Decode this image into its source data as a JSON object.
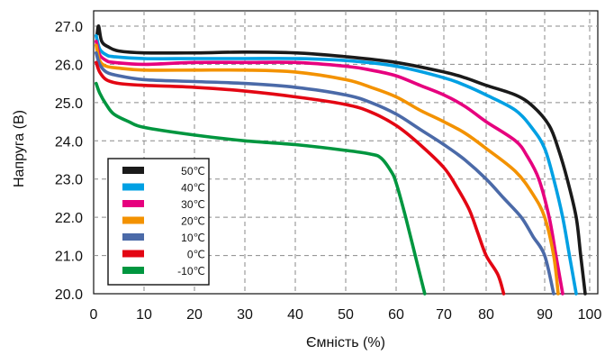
{
  "chart_data": {
    "type": "line",
    "title": "",
    "xlabel": "Ємність (%)",
    "ylabel": "Напруга (В)",
    "xlim": [
      0,
      101
    ],
    "ylim": [
      20,
      27.4
    ],
    "grid": true,
    "legend_position": "bottom-left",
    "x_ticks": [
      {
        "v": 0,
        "label": "0"
      },
      {
        "v": 10,
        "label": "10"
      },
      {
        "v": 20,
        "label": "20"
      },
      {
        "v": 30,
        "label": "30"
      },
      {
        "v": 40,
        "label": "40"
      },
      {
        "v": 50,
        "label": "50"
      },
      {
        "v": 60,
        "label": "60"
      },
      {
        "v": 70,
        "label": "70"
      },
      {
        "v": 80,
        "label": "80"
      },
      {
        "v": 90,
        "label": "90"
      },
      {
        "v": 100,
        "label": "100"
      }
    ],
    "y_ticks": [
      {
        "v": 20,
        "label": "20.0"
      },
      {
        "v": 21,
        "label": "21.0"
      },
      {
        "v": 22,
        "label": "22.0"
      },
      {
        "v": 23,
        "label": "23.0"
      },
      {
        "v": 24,
        "label": "24.0"
      },
      {
        "v": 25,
        "label": "25.0"
      },
      {
        "v": 26,
        "label": "26.0"
      },
      {
        "v": 27,
        "label": "27.0"
      }
    ],
    "series": [
      {
        "name": "50℃",
        "color": "#1a1a1a",
        "points": [
          [
            0.7,
            26.8
          ],
          [
            1.0,
            27.0
          ],
          [
            1.6,
            26.6
          ],
          [
            3,
            26.45
          ],
          [
            5,
            26.35
          ],
          [
            10,
            26.3
          ],
          [
            20,
            26.3
          ],
          [
            30,
            26.32
          ],
          [
            40,
            26.3
          ],
          [
            50,
            26.2
          ],
          [
            60,
            26.05
          ],
          [
            70,
            25.8
          ],
          [
            75,
            25.65
          ],
          [
            80,
            25.45
          ],
          [
            85,
            25.2
          ],
          [
            88,
            24.9
          ],
          [
            91,
            24.4
          ],
          [
            93,
            23.8
          ],
          [
            95,
            23.0
          ],
          [
            97,
            22.0
          ],
          [
            98,
            21.0
          ],
          [
            99,
            20.0
          ]
        ]
      },
      {
        "name": "40℃",
        "color": "#00a0e3",
        "points": [
          [
            0.5,
            26.75
          ],
          [
            1.2,
            26.4
          ],
          [
            2.5,
            26.25
          ],
          [
            4,
            26.2
          ],
          [
            10,
            26.15
          ],
          [
            20,
            26.15
          ],
          [
            30,
            26.15
          ],
          [
            40,
            26.15
          ],
          [
            50,
            26.1
          ],
          [
            60,
            25.95
          ],
          [
            70,
            25.65
          ],
          [
            75,
            25.45
          ],
          [
            80,
            25.2
          ],
          [
            85,
            24.8
          ],
          [
            88,
            24.3
          ],
          [
            90,
            23.8
          ],
          [
            92,
            23.0
          ],
          [
            94,
            22.0
          ],
          [
            95.5,
            21.0
          ],
          [
            97,
            20.0
          ]
        ]
      },
      {
        "name": "30℃",
        "color": "#e6007e",
        "points": [
          [
            0.5,
            26.6
          ],
          [
            1.2,
            26.25
          ],
          [
            2.5,
            26.1
          ],
          [
            4,
            26.05
          ],
          [
            10,
            26.0
          ],
          [
            20,
            26.05
          ],
          [
            30,
            26.05
          ],
          [
            40,
            26.05
          ],
          [
            50,
            25.95
          ],
          [
            55,
            25.85
          ],
          [
            60,
            25.7
          ],
          [
            65,
            25.45
          ],
          [
            70,
            25.2
          ],
          [
            75,
            24.9
          ],
          [
            80,
            24.5
          ],
          [
            85,
            24.0
          ],
          [
            87,
            23.6
          ],
          [
            89,
            23.0
          ],
          [
            91,
            22.0
          ],
          [
            92.5,
            21.0
          ],
          [
            94,
            20.0
          ]
        ]
      },
      {
        "name": "20℃",
        "color": "#f39200",
        "points": [
          [
            0.5,
            26.5
          ],
          [
            1.2,
            26.1
          ],
          [
            2.5,
            25.95
          ],
          [
            5,
            25.9
          ],
          [
            10,
            25.85
          ],
          [
            20,
            25.85
          ],
          [
            30,
            25.85
          ],
          [
            40,
            25.8
          ],
          [
            50,
            25.6
          ],
          [
            55,
            25.4
          ],
          [
            60,
            25.15
          ],
          [
            65,
            24.8
          ],
          [
            70,
            24.5
          ],
          [
            75,
            24.2
          ],
          [
            80,
            23.8
          ],
          [
            85,
            23.2
          ],
          [
            88,
            22.6
          ],
          [
            90,
            22.0
          ],
          [
            92,
            21.0
          ],
          [
            93,
            20.0
          ]
        ]
      },
      {
        "name": "10℃",
        "color": "#4b6aa8",
        "points": [
          [
            0.5,
            26.3
          ],
          [
            1.2,
            26.0
          ],
          [
            2.5,
            25.8
          ],
          [
            5,
            25.7
          ],
          [
            10,
            25.6
          ],
          [
            20,
            25.55
          ],
          [
            30,
            25.5
          ],
          [
            40,
            25.4
          ],
          [
            50,
            25.2
          ],
          [
            55,
            25.0
          ],
          [
            60,
            24.7
          ],
          [
            65,
            24.3
          ],
          [
            70,
            23.9
          ],
          [
            75,
            23.5
          ],
          [
            80,
            23.0
          ],
          [
            83,
            22.5
          ],
          [
            86,
            22.0
          ],
          [
            88,
            21.5
          ],
          [
            90,
            21.0
          ],
          [
            92,
            20.0
          ]
        ]
      },
      {
        "name": "0℃",
        "color": "#e30613",
        "points": [
          [
            0.5,
            26.05
          ],
          [
            1.2,
            25.8
          ],
          [
            2.5,
            25.6
          ],
          [
            5,
            25.5
          ],
          [
            10,
            25.45
          ],
          [
            20,
            25.4
          ],
          [
            30,
            25.3
          ],
          [
            40,
            25.15
          ],
          [
            50,
            24.95
          ],
          [
            55,
            24.75
          ],
          [
            60,
            24.4
          ],
          [
            65,
            23.9
          ],
          [
            70,
            23.3
          ],
          [
            73,
            22.8
          ],
          [
            76,
            22.2
          ],
          [
            78,
            21.6
          ],
          [
            80,
            21.0
          ],
          [
            82,
            20.5
          ],
          [
            83,
            20.0
          ]
        ]
      },
      {
        "name": "-10℃",
        "color": "#00963f",
        "points": [
          [
            0.5,
            25.5
          ],
          [
            1.2,
            25.25
          ],
          [
            2.5,
            24.95
          ],
          [
            4,
            24.7
          ],
          [
            7,
            24.5
          ],
          [
            10,
            24.35
          ],
          [
            20,
            24.15
          ],
          [
            30,
            24.0
          ],
          [
            40,
            23.9
          ],
          [
            50,
            23.75
          ],
          [
            55,
            23.65
          ],
          [
            57,
            23.55
          ],
          [
            59,
            23.2
          ],
          [
            60,
            22.9
          ],
          [
            62,
            22.0
          ],
          [
            64,
            21.0
          ],
          [
            66,
            20.0
          ]
        ]
      }
    ]
  }
}
